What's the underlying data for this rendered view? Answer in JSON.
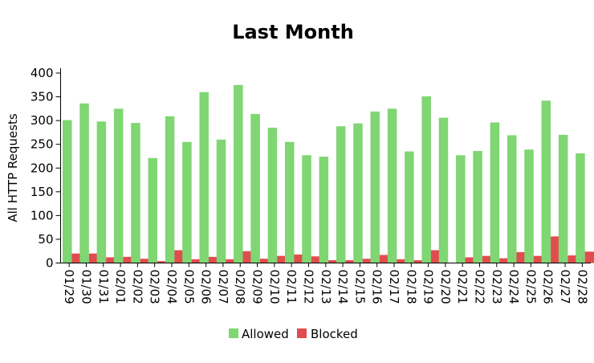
{
  "chart_data": {
    "type": "bar",
    "title": "Last Month",
    "xlabel": "",
    "ylabel": "All HTTP Requests",
    "ylim": [
      0,
      400
    ],
    "yticks": [
      0,
      50,
      100,
      150,
      200,
      250,
      300,
      350,
      400
    ],
    "grid": false,
    "legend_position": "bottom-center",
    "categories": [
      "01/29",
      "01/30",
      "01/31",
      "02/01",
      "02/02",
      "02/03",
      "02/04",
      "02/05",
      "02/06",
      "02/07",
      "02/08",
      "02/09",
      "02/10",
      "02/11",
      "02/12",
      "02/13",
      "02/14",
      "02/15",
      "02/16",
      "02/17",
      "02/18",
      "02/19",
      "02/20",
      "02/21",
      "02/22",
      "02/23",
      "02/24",
      "02/25",
      "02/26",
      "02/27",
      "02/28"
    ],
    "series": [
      {
        "name": "Allowed",
        "color": "#7fd672",
        "values": [
          301,
          336,
          298,
          325,
          295,
          221,
          309,
          255,
          360,
          260,
          375,
          314,
          285,
          255,
          227,
          224,
          288,
          294,
          319,
          325,
          235,
          351,
          306,
          227,
          236,
          296,
          269,
          239,
          342,
          270,
          231
        ]
      },
      {
        "name": "Blocked",
        "color": "#e14c4f",
        "values": [
          20,
          20,
          12,
          13,
          9,
          4,
          27,
          8,
          13,
          8,
          25,
          9,
          15,
          18,
          14,
          6,
          6,
          9,
          17,
          8,
          6,
          27,
          0,
          12,
          15,
          10,
          23,
          15,
          56,
          16,
          24
        ]
      }
    ]
  }
}
